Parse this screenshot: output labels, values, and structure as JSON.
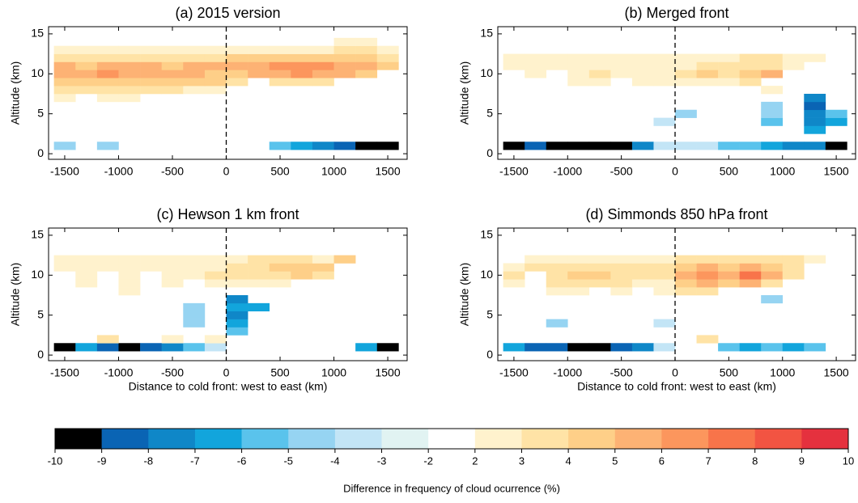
{
  "chart_data": [
    {
      "type": "heatmap",
      "title": "(a) 2015 version",
      "ylabel": "Altitude (km)",
      "x": [
        -1500,
        -1300,
        -1100,
        -900,
        -700,
        -500,
        -300,
        -100,
        100,
        300,
        500,
        700,
        900,
        1100,
        1300,
        1500
      ],
      "y": [
        1,
        2,
        3,
        4,
        5,
        6,
        7,
        8,
        9,
        10,
        11,
        12,
        13,
        14
      ],
      "values": [
        [
          -4,
          null,
          -4,
          null,
          null,
          null,
          null,
          null,
          null,
          null,
          -5,
          -6,
          -7,
          -8,
          -9.5,
          -9.5
        ],
        [
          null,
          null,
          null,
          null,
          null,
          null,
          null,
          null,
          null,
          null,
          null,
          null,
          null,
          null,
          null,
          null
        ],
        [
          null,
          null,
          null,
          null,
          null,
          null,
          null,
          null,
          null,
          null,
          null,
          null,
          null,
          null,
          null,
          null
        ],
        [
          null,
          null,
          null,
          null,
          null,
          null,
          null,
          null,
          null,
          null,
          null,
          null,
          null,
          null,
          null,
          null
        ],
        [
          null,
          null,
          null,
          null,
          null,
          null,
          null,
          null,
          null,
          null,
          null,
          null,
          null,
          null,
          null,
          null
        ],
        [
          null,
          null,
          null,
          null,
          null,
          null,
          null,
          null,
          null,
          null,
          null,
          null,
          null,
          null,
          null,
          null
        ],
        [
          3,
          null,
          3,
          3,
          null,
          null,
          null,
          null,
          null,
          null,
          null,
          null,
          null,
          null,
          null,
          null
        ],
        [
          4,
          4,
          4,
          4,
          4,
          4,
          3,
          3,
          null,
          null,
          null,
          null,
          null,
          null,
          null,
          null
        ],
        [
          5,
          5,
          5,
          5,
          5,
          5,
          5,
          5,
          4,
          null,
          4,
          4,
          4,
          null,
          null,
          null
        ],
        [
          6,
          6,
          7,
          6,
          6,
          6,
          6,
          5,
          5,
          6,
          6,
          7,
          6,
          6,
          5,
          null
        ],
        [
          6,
          5,
          6,
          6,
          6,
          5,
          6,
          6,
          6,
          6,
          7,
          7,
          7,
          6,
          6,
          5
        ],
        [
          4,
          4,
          4,
          4,
          4,
          4,
          4,
          4,
          5,
          5,
          5,
          5,
          5,
          5,
          5,
          4
        ],
        [
          3,
          3,
          3,
          3,
          3,
          3,
          3,
          3,
          3,
          3,
          3,
          3,
          3,
          4,
          4,
          3
        ],
        [
          null,
          null,
          null,
          null,
          null,
          null,
          null,
          null,
          null,
          null,
          null,
          null,
          null,
          3,
          3,
          null
        ]
      ],
      "xlim": [
        -1650,
        1680
      ],
      "ylim": [
        -0.7,
        15.9
      ],
      "xticks": [
        -1500,
        -1000,
        -500,
        0,
        500,
        1000,
        1500
      ],
      "yticks": [
        0,
        5,
        10,
        15
      ],
      "vline": 0
    },
    {
      "type": "heatmap",
      "title": "(b) Merged front",
      "ylabel": "Altitude (km)",
      "x": [
        -1500,
        -1300,
        -1100,
        -900,
        -700,
        -500,
        -300,
        -100,
        100,
        300,
        500,
        700,
        900,
        1100,
        1300,
        1500
      ],
      "y": [
        1,
        2,
        3,
        4,
        5,
        6,
        7,
        8,
        9,
        10,
        11,
        12,
        13,
        14
      ],
      "values": [
        [
          -9.5,
          -8,
          -9.5,
          -9.5,
          -9.5,
          -9.5,
          -7,
          -3,
          -3,
          -3,
          -5,
          -5,
          -6,
          -7,
          -7,
          -9.5
        ],
        [
          null,
          null,
          null,
          null,
          null,
          null,
          null,
          null,
          null,
          null,
          null,
          null,
          null,
          null,
          null,
          null
        ],
        [
          null,
          null,
          null,
          null,
          null,
          null,
          null,
          null,
          null,
          null,
          null,
          null,
          null,
          null,
          -6,
          null
        ],
        [
          null,
          null,
          null,
          null,
          null,
          null,
          null,
          -3,
          null,
          null,
          null,
          null,
          -5,
          null,
          -7,
          -6
        ],
        [
          null,
          null,
          null,
          null,
          null,
          null,
          null,
          null,
          -4,
          null,
          null,
          null,
          -4,
          null,
          -7,
          -5
        ],
        [
          null,
          null,
          null,
          null,
          null,
          null,
          null,
          null,
          null,
          null,
          null,
          null,
          -4,
          null,
          -8,
          null
        ],
        [
          null,
          null,
          null,
          null,
          null,
          null,
          null,
          null,
          null,
          null,
          null,
          null,
          null,
          null,
          -7,
          null
        ],
        [
          null,
          null,
          null,
          null,
          null,
          null,
          null,
          null,
          null,
          null,
          null,
          null,
          3,
          null,
          null,
          null
        ],
        [
          null,
          null,
          null,
          3,
          3,
          null,
          3,
          3,
          3,
          3,
          3,
          4,
          null,
          null,
          null,
          null
        ],
        [
          null,
          3,
          null,
          3,
          4,
          3,
          3,
          3,
          4,
          5,
          4,
          5,
          6,
          null,
          null,
          null
        ],
        [
          3,
          3,
          3,
          3,
          3,
          3,
          3,
          3,
          3,
          4,
          4,
          4,
          4,
          3,
          null,
          null
        ],
        [
          3,
          3,
          3,
          3,
          3,
          3,
          3,
          3,
          3,
          3,
          3,
          4,
          4,
          3,
          3,
          null
        ],
        [
          null,
          null,
          null,
          null,
          null,
          null,
          null,
          null,
          null,
          null,
          null,
          null,
          null,
          null,
          null,
          null
        ],
        [
          null,
          null,
          null,
          null,
          null,
          null,
          null,
          null,
          null,
          null,
          null,
          null,
          null,
          null,
          null,
          null
        ]
      ],
      "xlim": [
        -1650,
        1680
      ],
      "ylim": [
        -0.7,
        15.9
      ],
      "xticks": [
        -1500,
        -1000,
        -500,
        0,
        500,
        1000,
        1500
      ],
      "yticks": [
        0,
        5,
        10,
        15
      ],
      "vline": 0
    },
    {
      "type": "heatmap",
      "title": "(c) Hewson 1 km front",
      "ylabel": "Altitude (km)",
      "xlabel": "Distance to cold front: west to east (km)",
      "x": [
        -1500,
        -1300,
        -1100,
        -900,
        -700,
        -500,
        -300,
        -100,
        100,
        300,
        500,
        700,
        900,
        1100,
        1300,
        1500
      ],
      "y": [
        1,
        2,
        3,
        4,
        5,
        6,
        7,
        8,
        9,
        10,
        11,
        12,
        13,
        14
      ],
      "values": [
        [
          -9.5,
          -6,
          -8,
          -9.5,
          -8,
          -7,
          -5,
          -3,
          null,
          null,
          null,
          null,
          null,
          null,
          -6,
          -9.5
        ],
        [
          null,
          null,
          4,
          null,
          null,
          2.5,
          null,
          3,
          null,
          null,
          null,
          null,
          null,
          null,
          null,
          null
        ],
        [
          null,
          null,
          null,
          null,
          null,
          null,
          null,
          null,
          -5,
          null,
          null,
          null,
          null,
          null,
          null,
          null
        ],
        [
          null,
          null,
          null,
          null,
          null,
          null,
          -4,
          null,
          -6,
          null,
          null,
          null,
          null,
          null,
          null,
          null
        ],
        [
          null,
          null,
          null,
          null,
          null,
          null,
          -4,
          null,
          -7,
          null,
          null,
          null,
          null,
          null,
          null,
          null
        ],
        [
          null,
          null,
          null,
          null,
          null,
          null,
          -4,
          null,
          -6,
          -6,
          null,
          null,
          null,
          null,
          null,
          null
        ],
        [
          null,
          null,
          null,
          null,
          null,
          null,
          null,
          null,
          -7,
          null,
          null,
          null,
          null,
          null,
          null,
          null
        ],
        [
          null,
          null,
          null,
          3,
          null,
          null,
          null,
          null,
          null,
          null,
          null,
          null,
          null,
          null,
          null,
          null
        ],
        [
          null,
          3,
          null,
          3,
          null,
          3,
          null,
          3,
          3,
          3,
          3,
          null,
          null,
          null,
          null,
          null
        ],
        [
          null,
          3,
          null,
          3,
          null,
          3,
          3,
          4,
          4,
          4,
          4,
          5,
          4,
          null,
          null,
          null
        ],
        [
          3,
          3,
          3,
          3,
          3,
          3,
          3,
          3,
          4,
          4,
          5,
          5,
          5,
          null,
          null,
          null
        ],
        [
          3,
          3,
          3,
          3,
          3,
          3,
          3,
          3,
          3,
          4,
          4,
          4,
          3,
          5,
          null,
          null
        ],
        [
          null,
          null,
          null,
          null,
          null,
          null,
          null,
          null,
          null,
          null,
          null,
          null,
          null,
          null,
          null,
          null
        ],
        [
          null,
          null,
          null,
          null,
          null,
          null,
          null,
          null,
          null,
          null,
          null,
          null,
          null,
          null,
          null,
          null
        ]
      ],
      "xlim": [
        -1650,
        1680
      ],
      "ylim": [
        -0.7,
        15.9
      ],
      "xticks": [
        -1500,
        -1000,
        -500,
        0,
        500,
        1000,
        1500
      ],
      "yticks": [
        0,
        5,
        10,
        15
      ],
      "vline": 0
    },
    {
      "type": "heatmap",
      "title": "(d) Simmonds 850 hPa front",
      "ylabel": "Altitude (km)",
      "xlabel": "Distance to cold front: west to east (km)",
      "x": [
        -1500,
        -1300,
        -1100,
        -900,
        -700,
        -500,
        -300,
        -100,
        100,
        300,
        500,
        700,
        900,
        1100,
        1300,
        1500
      ],
      "y": [
        1,
        2,
        3,
        4,
        5,
        6,
        7,
        8,
        9,
        10,
        11,
        12,
        13,
        14
      ],
      "values": [
        [
          -6,
          -8,
          -8,
          -9,
          -9.5,
          -8,
          -7,
          -3,
          null,
          null,
          -5,
          -6,
          -5,
          -6,
          -5,
          null
        ],
        [
          null,
          null,
          null,
          null,
          null,
          null,
          null,
          null,
          null,
          4,
          null,
          null,
          null,
          null,
          null,
          null
        ],
        [
          null,
          null,
          null,
          null,
          null,
          null,
          null,
          null,
          null,
          null,
          null,
          null,
          null,
          null,
          null,
          null
        ],
        [
          null,
          null,
          -4,
          null,
          null,
          null,
          null,
          -3,
          null,
          null,
          null,
          null,
          null,
          null,
          null,
          null
        ],
        [
          null,
          null,
          null,
          null,
          null,
          null,
          null,
          null,
          null,
          null,
          null,
          null,
          null,
          null,
          null,
          null
        ],
        [
          null,
          null,
          null,
          null,
          null,
          null,
          null,
          null,
          null,
          null,
          null,
          null,
          null,
          null,
          null,
          null
        ],
        [
          null,
          null,
          null,
          null,
          null,
          null,
          null,
          null,
          null,
          null,
          null,
          null,
          -4,
          null,
          null,
          null
        ],
        [
          null,
          null,
          3,
          3,
          null,
          3,
          null,
          3,
          4,
          4,
          null,
          null,
          null,
          null,
          null,
          null
        ],
        [
          3,
          null,
          4,
          4,
          4,
          4,
          3,
          3,
          5,
          6,
          5,
          6,
          4,
          null,
          null,
          null
        ],
        [
          4,
          null,
          4,
          5,
          5,
          4,
          4,
          4,
          6,
          7,
          6,
          8,
          6,
          4,
          null,
          null
        ],
        [
          3,
          4,
          4,
          4,
          4,
          4,
          4,
          4,
          5,
          6,
          5,
          6,
          5,
          4,
          null,
          null
        ],
        [
          null,
          3,
          3,
          3,
          3,
          3,
          3,
          3,
          4,
          4,
          4,
          4,
          4,
          4,
          3,
          null
        ],
        [
          null,
          null,
          null,
          null,
          null,
          null,
          null,
          null,
          null,
          null,
          null,
          null,
          null,
          null,
          null,
          null
        ],
        [
          null,
          null,
          null,
          null,
          null,
          null,
          null,
          null,
          null,
          null,
          null,
          null,
          null,
          null,
          null,
          null
        ]
      ],
      "xlim": [
        -1650,
        1680
      ],
      "ylim": [
        -0.7,
        15.9
      ],
      "xticks": [
        -1500,
        -1000,
        -500,
        0,
        500,
        1000,
        1500
      ],
      "yticks": [
        0,
        5,
        10,
        15
      ],
      "vline": 0
    },
    {
      "type": "colorbar",
      "label": "Difference in frequency of cloud ocurrence (%)",
      "boundaries": [
        -10,
        -9,
        -8,
        -7,
        -6,
        -5,
        -4,
        -3,
        -2,
        2,
        3,
        4,
        5,
        6,
        7,
        8,
        9,
        10
      ],
      "colors": [
        "#000000",
        "#0a64b4",
        "#0f87c8",
        "#12a5dc",
        "#5ac3ec",
        "#96d4f2",
        "#c3e5f6",
        "#e1f3f2",
        "#ffffff",
        "#fff2cd",
        "#ffe3a6",
        "#fecf88",
        "#fdb274",
        "#fc965d",
        "#f8744a",
        "#f25442",
        "#e5313e"
      ]
    }
  ]
}
